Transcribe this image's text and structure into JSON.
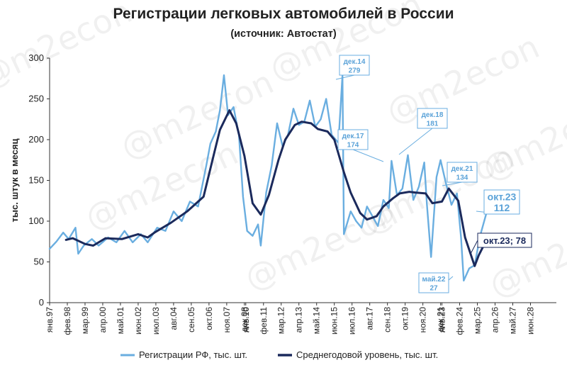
{
  "chart_data": {
    "type": "line",
    "title": "Регистрации легковых автомобилей в России",
    "subtitle": "(источник: Автостат)",
    "ylabel": "тыс. штук в месяц",
    "ylim": [
      0,
      300
    ],
    "yticks": [
      0,
      50,
      100,
      150,
      200,
      250,
      300
    ],
    "xlim": [
      "1997-01",
      "2028-01"
    ],
    "xticks": [
      "янв.97",
      "фев.98",
      "мар.99",
      "апр.00",
      "май.01",
      "июн.02",
      "июл.03",
      "авг.04",
      "сен.05",
      "окт.06",
      "ноя.07",
      "дек.08",
      "янв.10",
      "фев.11",
      "мар.12",
      "апр.13",
      "май.14",
      "июн.15",
      "июл.16",
      "авг.17",
      "сен.18",
      "окт.19",
      "ноя.20",
      "дек.21",
      "янв.23",
      "фев.24",
      "мар.25",
      "апр.26",
      "май.27",
      "июн.28"
    ],
    "grid": false,
    "legend": "bottom",
    "series": [
      {
        "name": "Регистрации РФ, тыс. шт.",
        "color": "#6aaee0",
        "points": [
          [
            "1997-01",
            66
          ],
          [
            "1997-06",
            75
          ],
          [
            "1997-11",
            86
          ],
          [
            "1998-03",
            78
          ],
          [
            "1998-08",
            92
          ],
          [
            "1998-10",
            60
          ],
          [
            "1999-02",
            70
          ],
          [
            "1999-08",
            78
          ],
          [
            "2000-01",
            70
          ],
          [
            "2000-08",
            80
          ],
          [
            "2001-02",
            74
          ],
          [
            "2001-08",
            88
          ],
          [
            "2002-02",
            74
          ],
          [
            "2002-08",
            84
          ],
          [
            "2003-01",
            74
          ],
          [
            "2003-08",
            92
          ],
          [
            "2004-02",
            88
          ],
          [
            "2004-08",
            112
          ],
          [
            "2005-02",
            100
          ],
          [
            "2005-08",
            124
          ],
          [
            "2006-02",
            118
          ],
          [
            "2006-08",
            168
          ],
          [
            "2006-11",
            195
          ],
          [
            "2007-03",
            210
          ],
          [
            "2007-06",
            236
          ],
          [
            "2007-09",
            279
          ],
          [
            "2007-12",
            230
          ],
          [
            "2008-04",
            240
          ],
          [
            "2008-08",
            205
          ],
          [
            "2008-11",
            130
          ],
          [
            "2009-02",
            88
          ],
          [
            "2009-06",
            82
          ],
          [
            "2009-10",
            96
          ],
          [
            "2009-12",
            70
          ],
          [
            "2010-04",
            135
          ],
          [
            "2010-08",
            168
          ],
          [
            "2010-12",
            220
          ],
          [
            "2011-04",
            192
          ],
          [
            "2011-08",
            206
          ],
          [
            "2011-12",
            238
          ],
          [
            "2012-04",
            218
          ],
          [
            "2012-08",
            222
          ],
          [
            "2012-12",
            248
          ],
          [
            "2013-04",
            216
          ],
          [
            "2013-08",
            225
          ],
          [
            "2013-12",
            250
          ],
          [
            "2014-04",
            206
          ],
          [
            "2014-09",
            196
          ],
          [
            "2014-12",
            279
          ],
          [
            "2015-01",
            84
          ],
          [
            "2015-06",
            112
          ],
          [
            "2015-10",
            100
          ],
          [
            "2016-02",
            92
          ],
          [
            "2016-06",
            118
          ],
          [
            "2016-10",
            106
          ],
          [
            "2017-02",
            94
          ],
          [
            "2017-06",
            126
          ],
          [
            "2017-10",
            116
          ],
          [
            "2017-12",
            174
          ],
          [
            "2018-04",
            132
          ],
          [
            "2018-08",
            140
          ],
          [
            "2018-12",
            181
          ],
          [
            "2019-04",
            126
          ],
          [
            "2019-08",
            142
          ],
          [
            "2019-12",
            172
          ],
          [
            "2020-02",
            120
          ],
          [
            "2020-05",
            56
          ],
          [
            "2020-09",
            154
          ],
          [
            "2020-12",
            175
          ],
          [
            "2021-04",
            146
          ],
          [
            "2021-08",
            120
          ],
          [
            "2021-12",
            134
          ],
          [
            "2022-03",
            80
          ],
          [
            "2022-05",
            27
          ],
          [
            "2022-09",
            42
          ],
          [
            "2023-01",
            46
          ],
          [
            "2023-05",
            82
          ],
          [
            "2023-10",
            112
          ]
        ]
      },
      {
        "name": "Среднегодовой уровень, тыс. шт.",
        "color": "#1b2a5c",
        "points": [
          [
            "1998-01",
            77
          ],
          [
            "1998-06",
            79
          ],
          [
            "1999-03",
            72
          ],
          [
            "1999-09",
            70
          ],
          [
            "2000-06",
            79
          ],
          [
            "2001-06",
            78
          ],
          [
            "2002-06",
            84
          ],
          [
            "2003-01",
            80
          ],
          [
            "2003-06",
            86
          ],
          [
            "2004-06",
            98
          ],
          [
            "2005-06",
            112
          ],
          [
            "2006-06",
            130
          ],
          [
            "2007-02",
            185
          ],
          [
            "2007-06",
            212
          ],
          [
            "2008-01",
            236
          ],
          [
            "2008-06",
            220
          ],
          [
            "2008-12",
            180
          ],
          [
            "2009-06",
            122
          ],
          [
            "2009-12",
            108
          ],
          [
            "2010-06",
            132
          ],
          [
            "2011-01",
            175
          ],
          [
            "2011-06",
            200
          ],
          [
            "2012-01",
            218
          ],
          [
            "2012-06",
            222
          ],
          [
            "2013-01",
            220
          ],
          [
            "2013-06",
            213
          ],
          [
            "2014-01",
            210
          ],
          [
            "2014-06",
            200
          ],
          [
            "2015-01",
            160
          ],
          [
            "2015-06",
            135
          ],
          [
            "2016-01",
            110
          ],
          [
            "2016-06",
            102
          ],
          [
            "2017-01",
            106
          ],
          [
            "2017-06",
            118
          ],
          [
            "2018-01",
            128
          ],
          [
            "2018-06",
            134
          ],
          [
            "2019-01",
            136
          ],
          [
            "2019-06",
            135
          ],
          [
            "2020-01",
            134
          ],
          [
            "2020-06",
            122
          ],
          [
            "2021-01",
            124
          ],
          [
            "2021-06",
            140
          ],
          [
            "2022-01",
            125
          ],
          [
            "2022-06",
            80
          ],
          [
            "2023-01",
            45
          ],
          [
            "2023-04",
            58
          ],
          [
            "2023-10",
            78
          ]
        ]
      }
    ],
    "annotations": [
      {
        "label": "дек.14",
        "value": "279",
        "x": "2014-12",
        "y": 279,
        "style": "light"
      },
      {
        "label": "дек.17",
        "value": "174",
        "x": "2017-12",
        "y": 174,
        "style": "light"
      },
      {
        "label": "дек.18",
        "value": "181",
        "x": "2018-12",
        "y": 181,
        "style": "light"
      },
      {
        "label": "дек.21",
        "value": "134",
        "x": "2021-12",
        "y": 134,
        "style": "light"
      },
      {
        "label": "май.22",
        "value": "27",
        "x": "2022-05",
        "y": 27,
        "style": "light"
      },
      {
        "label": "окт.23",
        "value": "112",
        "x": "2023-10",
        "y": 112,
        "style": "light-large"
      },
      {
        "label": "окт.23; 78",
        "value": "",
        "x": "2023-10",
        "y": 78,
        "style": "dark"
      }
    ],
    "watermark": "@m2econ"
  }
}
